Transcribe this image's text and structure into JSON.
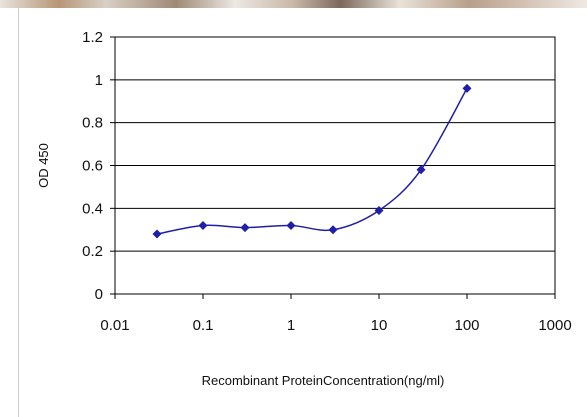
{
  "chart_data": {
    "type": "line",
    "x_scale": "log",
    "x": [
      0.03,
      0.1,
      0.3,
      1,
      3,
      10,
      30,
      100
    ],
    "series": [
      {
        "values": [
          0.28,
          0.32,
          0.31,
          0.32,
          0.3,
          0.39,
          0.58,
          0.96
        ]
      }
    ],
    "xlim": [
      0.01,
      1000
    ],
    "ylim": [
      0,
      1.2
    ],
    "xticks": [
      "0.01",
      "0.1",
      "1",
      "10",
      "100",
      "1000"
    ],
    "yticks": [
      "0",
      "0.2",
      "0.4",
      "0.6",
      "0.8",
      "1",
      "1.2"
    ],
    "xlabel": "Recombinant ProteinConcentration(ng/ml)",
    "ylabel": "OD 450",
    "grid_y": true,
    "line_color": "#1f1fa8"
  }
}
